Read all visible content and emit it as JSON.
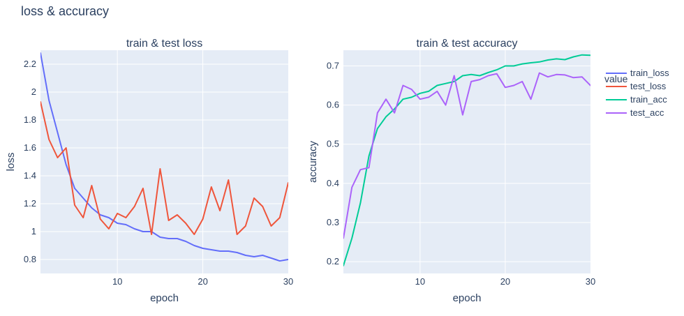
{
  "figure": {
    "title": "loss & accuracy"
  },
  "legend": {
    "title": "value"
  },
  "chart_data": [
    {
      "type": "line",
      "title": "train & test loss",
      "xlabel": "epoch",
      "ylabel": "loss",
      "xlim": [
        1,
        30
      ],
      "ylim": [
        0.7,
        2.3
      ],
      "xticks": [
        10,
        20,
        30
      ],
      "yticks": [
        0.8,
        1,
        1.2,
        1.4,
        1.6,
        1.8,
        2,
        2.2
      ],
      "x": [
        1,
        2,
        3,
        4,
        5,
        6,
        7,
        8,
        9,
        10,
        11,
        12,
        13,
        14,
        15,
        16,
        17,
        18,
        19,
        20,
        21,
        22,
        23,
        24,
        25,
        26,
        27,
        28,
        29,
        30
      ],
      "series": [
        {
          "name": "train_loss",
          "color": "#636EFA",
          "values": [
            2.28,
            1.94,
            1.71,
            1.48,
            1.31,
            1.24,
            1.17,
            1.12,
            1.1,
            1.06,
            1.05,
            1.02,
            1.0,
            1.0,
            0.96,
            0.95,
            0.95,
            0.93,
            0.9,
            0.88,
            0.87,
            0.86,
            0.86,
            0.85,
            0.83,
            0.82,
            0.83,
            0.81,
            0.79,
            0.8
          ]
        },
        {
          "name": "test_loss",
          "color": "#EF553B",
          "values": [
            1.93,
            1.66,
            1.53,
            1.6,
            1.19,
            1.1,
            1.33,
            1.09,
            1.02,
            1.13,
            1.1,
            1.18,
            1.31,
            0.98,
            1.45,
            1.08,
            1.12,
            1.06,
            0.98,
            1.09,
            1.32,
            1.15,
            1.37,
            0.98,
            1.04,
            1.24,
            1.18,
            1.04,
            1.1,
            1.35
          ]
        }
      ]
    },
    {
      "type": "line",
      "title": "train & test accuracy",
      "xlabel": "epoch",
      "ylabel": "accuracy",
      "xlim": [
        1,
        30
      ],
      "ylim": [
        0.17,
        0.74
      ],
      "xticks": [
        10,
        20,
        30
      ],
      "yticks": [
        0.2,
        0.3,
        0.4,
        0.5,
        0.6,
        0.7
      ],
      "x": [
        1,
        2,
        3,
        4,
        5,
        6,
        7,
        8,
        9,
        10,
        11,
        12,
        13,
        14,
        15,
        16,
        17,
        18,
        19,
        20,
        21,
        22,
        23,
        24,
        25,
        26,
        27,
        28,
        29,
        30
      ],
      "series": [
        {
          "name": "train_acc",
          "color": "#00CC96",
          "values": [
            0.19,
            0.26,
            0.35,
            0.47,
            0.54,
            0.57,
            0.59,
            0.615,
            0.62,
            0.63,
            0.635,
            0.65,
            0.655,
            0.66,
            0.675,
            0.678,
            0.675,
            0.683,
            0.69,
            0.7,
            0.7,
            0.705,
            0.708,
            0.71,
            0.715,
            0.718,
            0.716,
            0.723,
            0.728,
            0.727
          ]
        },
        {
          "name": "test_acc",
          "color": "#AB63FA",
          "values": [
            0.26,
            0.39,
            0.435,
            0.44,
            0.58,
            0.615,
            0.58,
            0.65,
            0.64,
            0.615,
            0.62,
            0.635,
            0.6,
            0.675,
            0.575,
            0.66,
            0.665,
            0.675,
            0.68,
            0.645,
            0.65,
            0.66,
            0.615,
            0.682,
            0.672,
            0.678,
            0.677,
            0.67,
            0.672,
            0.65
          ]
        }
      ]
    }
  ]
}
